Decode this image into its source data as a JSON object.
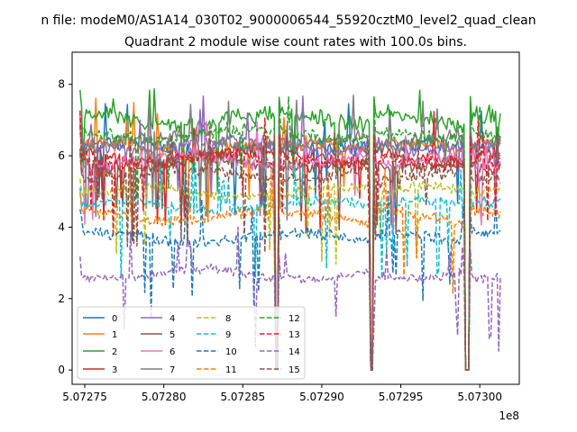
{
  "figure": {
    "suptitle": "n file: modeM0/AS1A14_030T02_9000006544_55920cztM0_level2_quad_clean",
    "title": "Quadrant 2 module wise count rates with 100.0s bins."
  },
  "chart_data": {
    "type": "line",
    "title": "Quadrant 2 module wise count rates with 100.0s bins.",
    "xlabel": "",
    "ylabel": "",
    "x_offset_label": "1e8",
    "xlim": [
      507274200,
      507302500
    ],
    "ylim": [
      -0.4,
      8.9
    ],
    "xticks": [
      507275000,
      507280000,
      507285000,
      507290000,
      507295000,
      507300000
    ],
    "xtick_labels": [
      "5.07275",
      "5.07280",
      "5.07285",
      "5.07290",
      "5.07295",
      "5.07300"
    ],
    "yticks": [
      0,
      2,
      4,
      6,
      8
    ],
    "ytick_labels": [
      "0",
      "2",
      "4",
      "6",
      "8"
    ],
    "grid": false,
    "legend_position": "lower-left",
    "bin_seconds": 100,
    "segments": [
      [
        507274700,
        507287000
      ],
      [
        507287300,
        507293000
      ],
      [
        507293300,
        507299000
      ],
      [
        507299400,
        507301300
      ]
    ],
    "series": [
      {
        "name": "0",
        "mean": 6.2,
        "noise": 0.35,
        "style": "solid",
        "color": "#1f77b4"
      },
      {
        "name": "1",
        "mean": 6.2,
        "noise": 0.3,
        "style": "solid",
        "color": "#ff7f0e"
      },
      {
        "name": "2",
        "mean": 7.0,
        "noise": 0.35,
        "style": "solid",
        "color": "#2ca02c"
      },
      {
        "name": "3",
        "mean": 6.0,
        "noise": 0.3,
        "style": "solid",
        "color": "#d62728"
      },
      {
        "name": "4",
        "mean": 6.3,
        "noise": 0.3,
        "style": "solid",
        "color": "#9467bd"
      },
      {
        "name": "5",
        "mean": 5.8,
        "noise": 0.3,
        "style": "solid",
        "color": "#8c564b"
      },
      {
        "name": "6",
        "mean": 5.9,
        "noise": 0.3,
        "style": "solid",
        "color": "#e377c2"
      },
      {
        "name": "7",
        "mean": 6.4,
        "noise": 0.3,
        "style": "solid",
        "color": "#7f7f7f"
      },
      {
        "name": "8",
        "mean": 5.0,
        "noise": 0.25,
        "style": "dashed",
        "color": "#bcbd22"
      },
      {
        "name": "9",
        "mean": 4.6,
        "noise": 0.25,
        "style": "dashed",
        "color": "#17becf"
      },
      {
        "name": "10",
        "mean": 3.7,
        "noise": 0.25,
        "style": "dashed",
        "color": "#1f77b4"
      },
      {
        "name": "11",
        "mean": 4.3,
        "noise": 0.25,
        "style": "dashed",
        "color": "#ff7f0e"
      },
      {
        "name": "12",
        "mean": 6.6,
        "noise": 0.3,
        "style": "dashed",
        "color": "#2ca02c"
      },
      {
        "name": "13",
        "mean": 5.9,
        "noise": 0.3,
        "style": "dashed",
        "color": "#d62728"
      },
      {
        "name": "14",
        "mean": 2.7,
        "noise": 0.2,
        "style": "dashed",
        "color": "#9467bd"
      },
      {
        "name": "15",
        "mean": 5.5,
        "noise": 0.3,
        "style": "dashed",
        "color": "#8c564b"
      }
    ]
  }
}
